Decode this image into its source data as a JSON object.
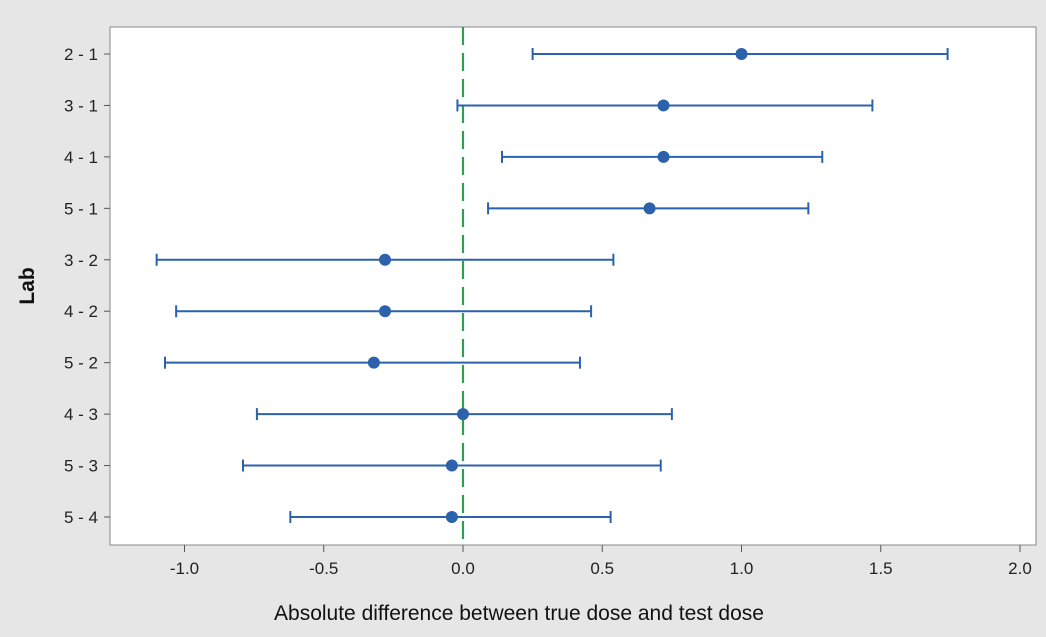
{
  "chart_data": {
    "type": "scatter",
    "subtype": "interval-plot",
    "title": "",
    "xlabel": "Absolute difference between true dose and test dose",
    "ylabel": "Lab",
    "xlim": [
      -1.25,
      2.0
    ],
    "xticks": [
      -1.0,
      -0.5,
      0.0,
      0.5,
      1.0,
      1.5,
      2.0
    ],
    "xtick_labels": [
      "-1.0",
      "-0.5",
      "0.0",
      "0.5",
      "1.0",
      "1.5",
      "2.0"
    ],
    "reference_line": {
      "x": 0.0,
      "style": "dashed",
      "color": "#2e9e4f"
    },
    "grid": false,
    "legend": "none",
    "series_color": "#2c62ac",
    "categories": [
      "2 - 1",
      "3 - 1",
      "4 - 1",
      "5 - 1",
      "3 - 2",
      "4 - 2",
      "5 - 2",
      "4 - 3",
      "5 - 3",
      "5 - 4"
    ],
    "estimate": [
      1.0,
      0.72,
      0.72,
      0.67,
      -0.28,
      -0.28,
      -0.32,
      0.0,
      -0.04,
      -0.04
    ],
    "lower": [
      0.25,
      -0.02,
      0.14,
      0.09,
      -1.1,
      -1.03,
      -1.07,
      -0.74,
      -0.79,
      -0.62
    ],
    "upper": [
      1.74,
      1.47,
      1.29,
      1.24,
      0.54,
      0.46,
      0.42,
      0.75,
      0.71,
      0.53
    ]
  }
}
